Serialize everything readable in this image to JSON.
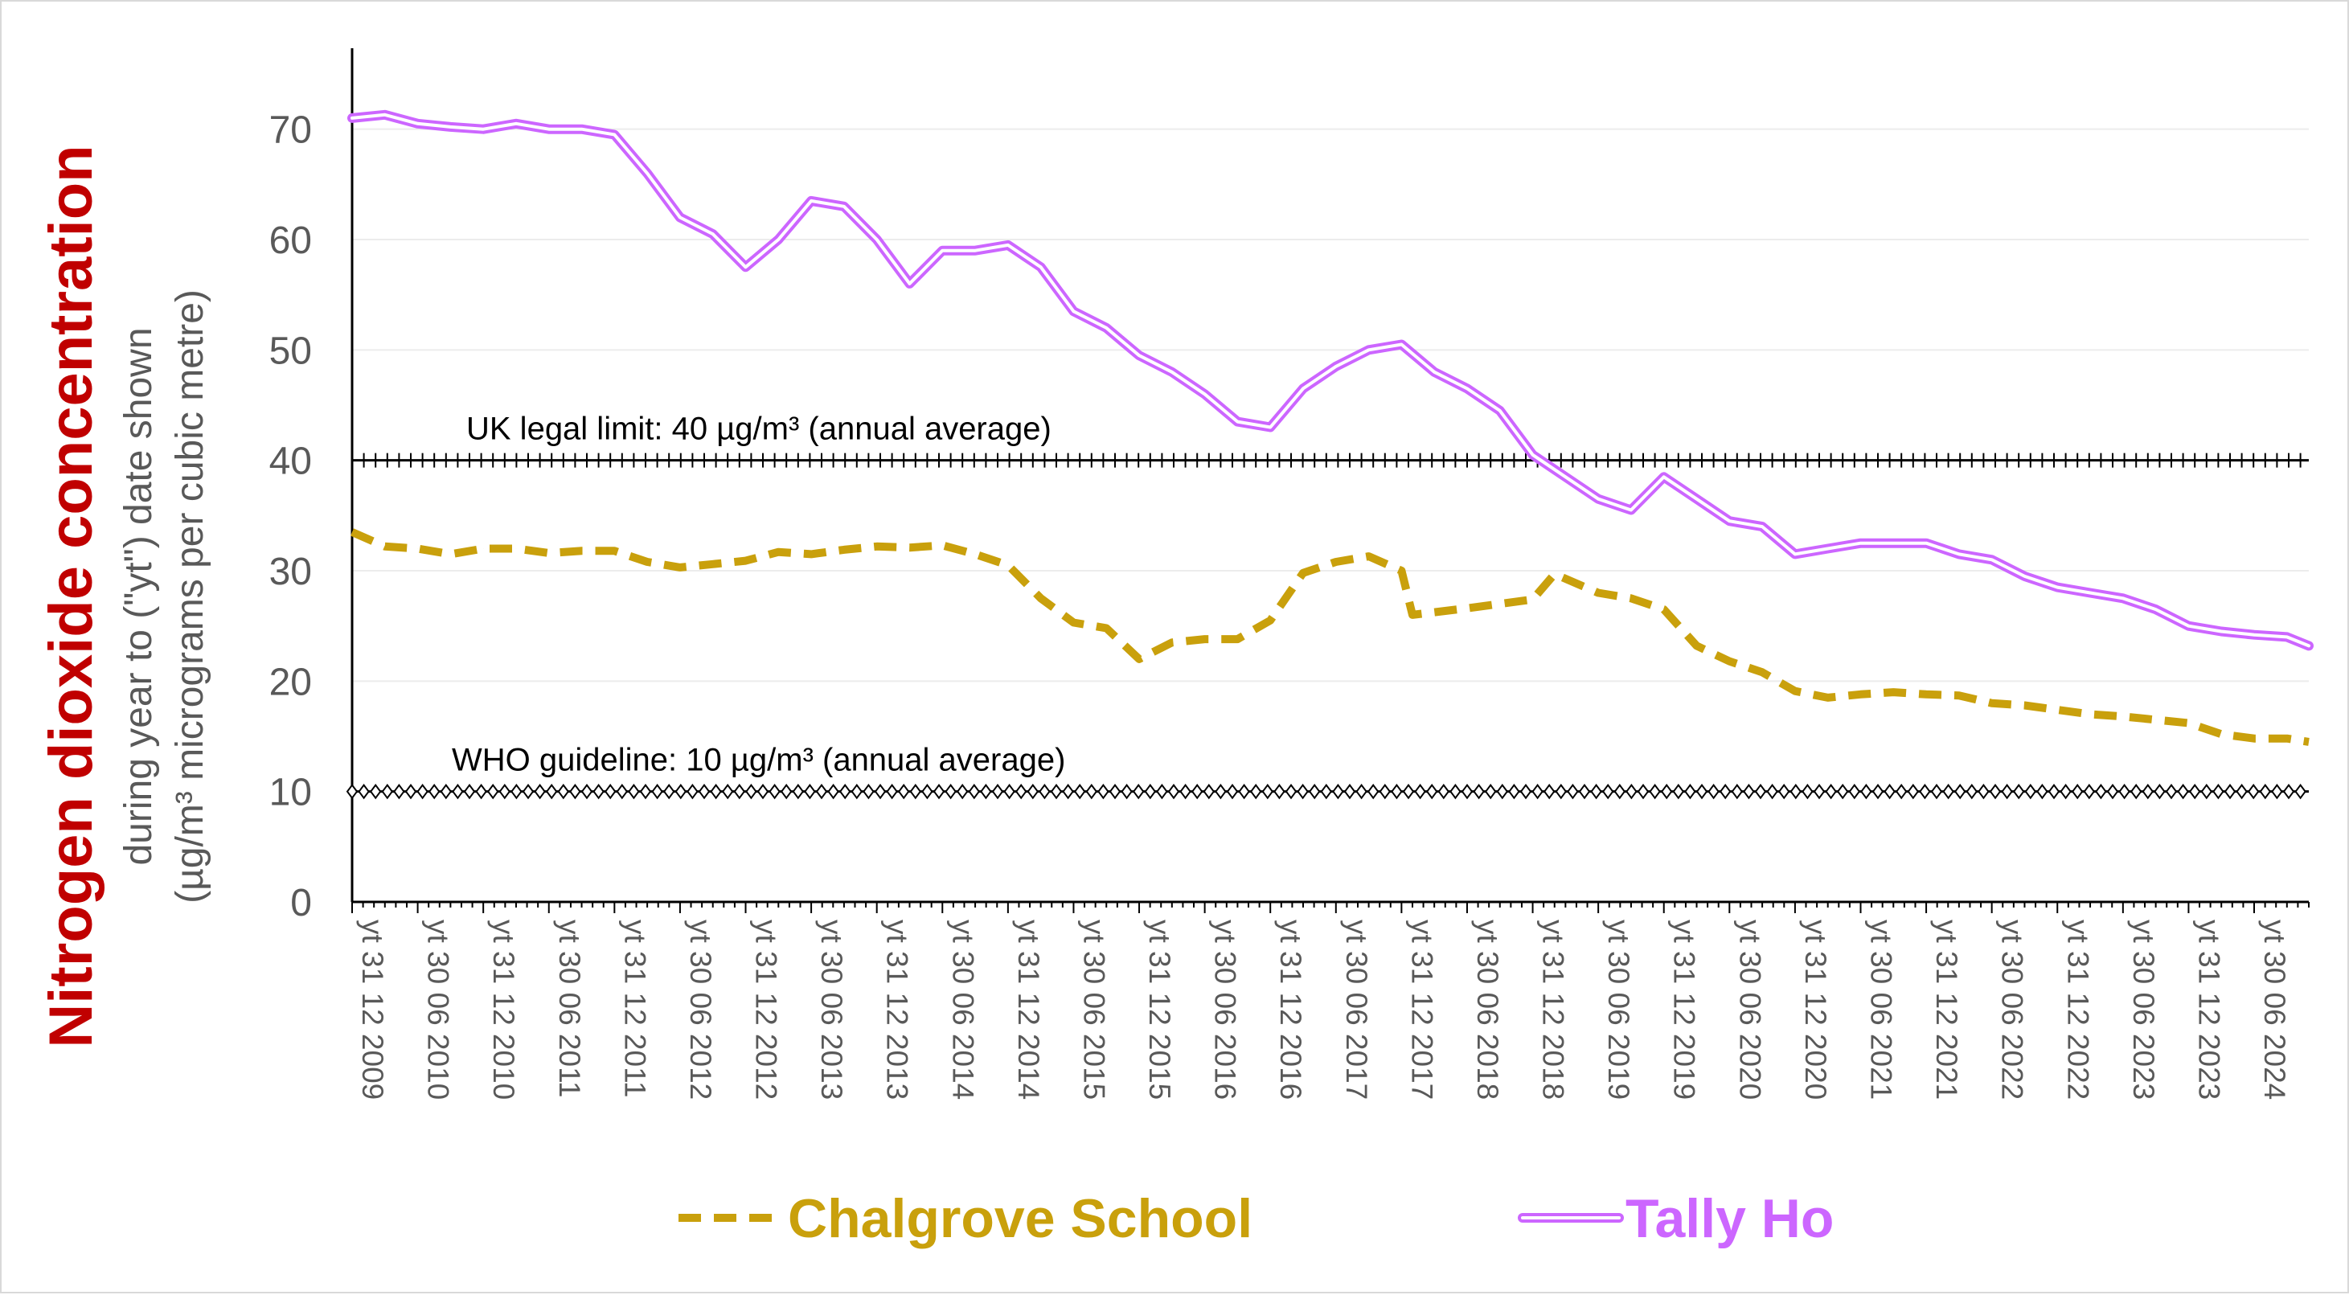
{
  "chart_data": {
    "type": "line",
    "title": "Nitrogen dioxide concentration",
    "ylabel_line1": "during year to (\"yt\") date shown",
    "ylabel_line2": "(µg/m³ micrograms per cubic metre)",
    "ylim": [
      0,
      75
    ],
    "yticks": [
      0,
      10,
      20,
      30,
      40,
      50,
      60,
      70
    ],
    "grid": "horizontal",
    "legend_position": "bottom",
    "x_tick_labels": [
      "yt 31 12 2009",
      "yt 30 06 2010",
      "yt 31 12 2010",
      "yt 30 06 2011",
      "yt 31 12 2011",
      "yt 30 06 2012",
      "yt 31 12 2012",
      "yt 30 06 2013",
      "yt 31 12 2013",
      "yt 30 06 2014",
      "yt 31 12 2014",
      "yt 30 06 2015",
      "yt 31 12 2015",
      "yt 30 06 2016",
      "yt 31 12 2016",
      "yt 30 06 2017",
      "yt 31 12 2017",
      "yt 30 06 2018",
      "yt 31 12 2018",
      "yt 30 06 2019",
      "yt 31 12 2019",
      "yt 30 06 2020",
      "yt 31 12 2020",
      "yt 30 06 2021",
      "yt 31 12 2021",
      "yt 30 06 2022",
      "yt 31 12 2022",
      "yt 30 06 2023",
      "yt 31 12 2023",
      "yt 30 06 2024"
    ],
    "x_start": "2009-12",
    "x_end": "2024-11",
    "reference_lines": [
      {
        "label": "UK legal limit:  40 µg/m³ (annual average)",
        "value": 40,
        "marker": "plus",
        "color": "#000000"
      },
      {
        "label": "WHO guideline:  10 µg/m³ (annual average)",
        "value": 10,
        "marker": "diamond",
        "color": "#000000"
      }
    ],
    "series": [
      {
        "name": "Chalgrove School",
        "color": "#c9a00c",
        "style": "dashed",
        "points": [
          [
            "2009-12",
            33.5
          ],
          [
            "2010-03",
            32.2
          ],
          [
            "2010-06",
            32
          ],
          [
            "2010-09",
            31.5
          ],
          [
            "2010-12",
            32
          ],
          [
            "2011-03",
            32
          ],
          [
            "2011-06",
            31.6
          ],
          [
            "2011-09",
            31.8
          ],
          [
            "2011-12",
            31.8
          ],
          [
            "2012-03",
            30.8
          ],
          [
            "2012-06",
            30.3
          ],
          [
            "2012-09",
            30.6
          ],
          [
            "2012-12",
            30.9
          ],
          [
            "2013-03",
            31.7
          ],
          [
            "2013-06",
            31.5
          ],
          [
            "2013-09",
            31.9
          ],
          [
            "2013-12",
            32.2
          ],
          [
            "2014-03",
            32.1
          ],
          [
            "2014-06",
            32.3
          ],
          [
            "2014-09",
            31.5
          ],
          [
            "2014-12",
            30.5
          ],
          [
            "2015-03",
            27.5
          ],
          [
            "2015-06",
            25.3
          ],
          [
            "2015-09",
            24.8
          ],
          [
            "2015-12",
            22
          ],
          [
            "2016-03",
            23.5
          ],
          [
            "2016-06",
            23.8
          ],
          [
            "2016-09",
            23.8
          ],
          [
            "2016-12",
            25.5
          ],
          [
            "2017-03",
            29.8
          ],
          [
            "2017-06",
            30.8
          ],
          [
            "2017-09",
            31.3
          ],
          [
            "2017-12",
            30
          ],
          [
            "2018-01",
            26
          ],
          [
            "2018-06",
            26.6
          ],
          [
            "2018-09",
            27
          ],
          [
            "2018-12",
            27.4
          ],
          [
            "2019-02",
            29.7
          ],
          [
            "2019-06",
            28
          ],
          [
            "2019-09",
            27.5
          ],
          [
            "2019-12",
            26.5
          ],
          [
            "2020-03",
            23.2
          ],
          [
            "2020-06",
            21.8
          ],
          [
            "2020-09",
            20.8
          ],
          [
            "2020-12",
            19.1
          ],
          [
            "2021-03",
            18.5
          ],
          [
            "2021-06",
            18.8
          ],
          [
            "2021-09",
            19
          ],
          [
            "2021-12",
            18.8
          ],
          [
            "2022-03",
            18.7
          ],
          [
            "2022-06",
            18
          ],
          [
            "2022-09",
            17.8
          ],
          [
            "2022-12",
            17.4
          ],
          [
            "2023-03",
            17
          ],
          [
            "2023-06",
            16.8
          ],
          [
            "2023-09",
            16.5
          ],
          [
            "2023-12",
            16.2
          ],
          [
            "2024-03",
            15.2
          ],
          [
            "2024-06",
            14.8
          ],
          [
            "2024-09",
            14.8
          ],
          [
            "2024-11",
            14.5
          ]
        ]
      },
      {
        "name": "Tally Ho",
        "color": "#cc66ff",
        "style": "double",
        "points": [
          [
            "2009-12",
            71
          ],
          [
            "2010-03",
            71.3
          ],
          [
            "2010-06",
            70.5
          ],
          [
            "2010-09",
            70.2
          ],
          [
            "2010-12",
            70
          ],
          [
            "2011-03",
            70.5
          ],
          [
            "2011-06",
            70
          ],
          [
            "2011-09",
            70
          ],
          [
            "2011-12",
            69.5
          ],
          [
            "2012-03",
            66
          ],
          [
            "2012-06",
            62
          ],
          [
            "2012-09",
            60.5
          ],
          [
            "2012-12",
            57.5
          ],
          [
            "2013-03",
            60
          ],
          [
            "2013-06",
            63.5
          ],
          [
            "2013-09",
            63
          ],
          [
            "2013-12",
            60
          ],
          [
            "2014-03",
            56
          ],
          [
            "2014-06",
            59
          ],
          [
            "2014-09",
            59
          ],
          [
            "2014-12",
            59.5
          ],
          [
            "2015-03",
            57.5
          ],
          [
            "2015-06",
            53.5
          ],
          [
            "2015-09",
            52
          ],
          [
            "2015-12",
            49.5
          ],
          [
            "2016-03",
            48
          ],
          [
            "2016-06",
            46
          ],
          [
            "2016-09",
            43.5
          ],
          [
            "2016-12",
            43
          ],
          [
            "2017-03",
            46.5
          ],
          [
            "2017-06",
            48.5
          ],
          [
            "2017-09",
            50
          ],
          [
            "2017-12",
            50.5
          ],
          [
            "2018-03",
            48
          ],
          [
            "2018-06",
            46.5
          ],
          [
            "2018-09",
            44.5
          ],
          [
            "2018-12",
            40.5
          ],
          [
            "2019-03",
            38.5
          ],
          [
            "2019-06",
            36.5
          ],
          [
            "2019-09",
            35.5
          ],
          [
            "2019-12",
            38.5
          ],
          [
            "2020-03",
            36.5
          ],
          [
            "2020-06",
            34.5
          ],
          [
            "2020-09",
            34
          ],
          [
            "2020-12",
            31.5
          ],
          [
            "2021-03",
            32
          ],
          [
            "2021-06",
            32.5
          ],
          [
            "2021-09",
            32.5
          ],
          [
            "2021-12",
            32.5
          ],
          [
            "2022-03",
            31.5
          ],
          [
            "2022-06",
            31
          ],
          [
            "2022-09",
            29.5
          ],
          [
            "2022-12",
            28.5
          ],
          [
            "2023-03",
            28
          ],
          [
            "2023-06",
            27.5
          ],
          [
            "2023-09",
            26.5
          ],
          [
            "2023-12",
            25
          ],
          [
            "2024-03",
            24.5
          ],
          [
            "2024-06",
            24.2
          ],
          [
            "2024-09",
            24
          ],
          [
            "2024-11",
            23.2
          ]
        ]
      }
    ]
  }
}
